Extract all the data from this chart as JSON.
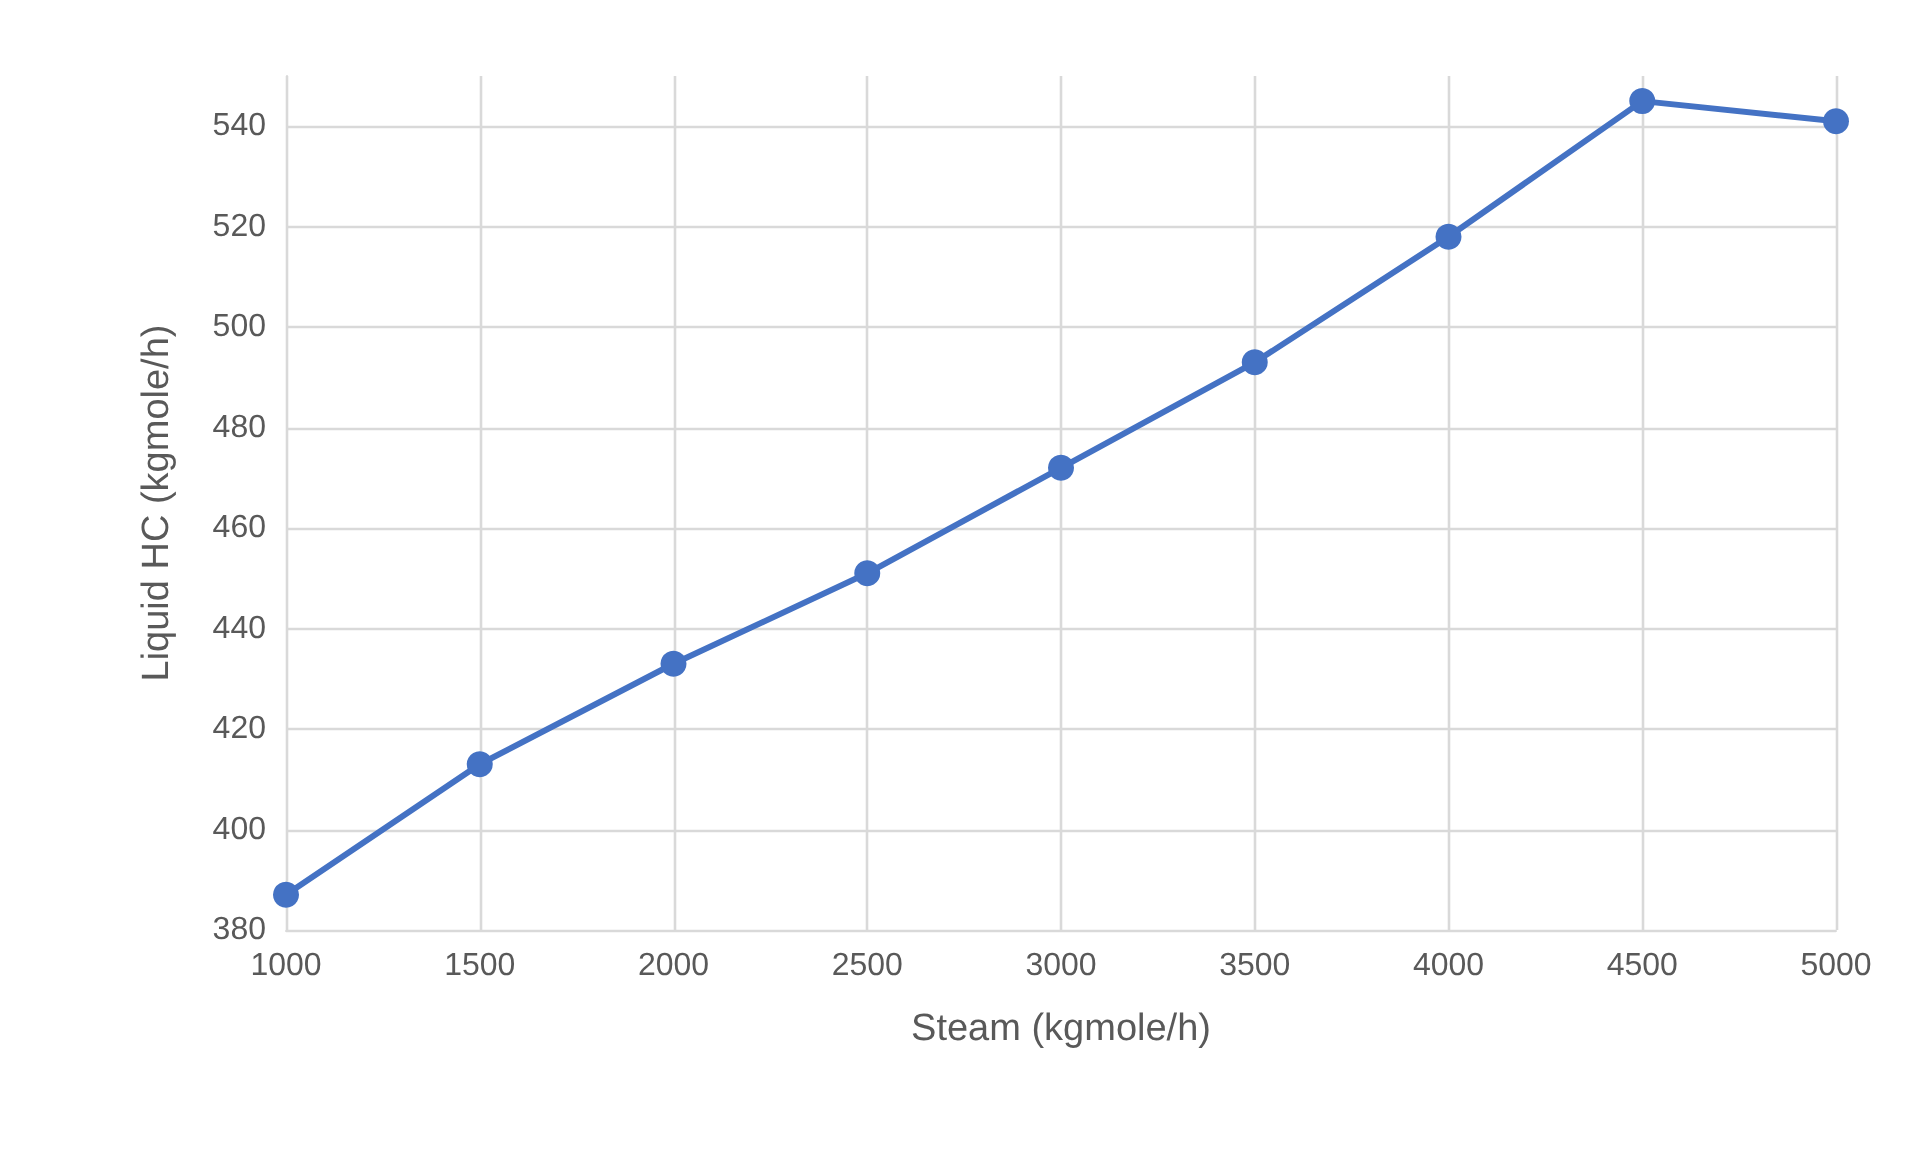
{
  "chart_data": {
    "type": "line",
    "xlabel": "Steam (kgmole/h)",
    "ylabel": "Liquid HC (kgmole/h)",
    "x": [
      1000,
      1500,
      2000,
      2500,
      3000,
      3500,
      4000,
      4500,
      5000
    ],
    "series": [
      {
        "color": "#4472c4",
        "values": [
          387,
          413,
          433,
          451,
          472,
          493,
          518,
          545,
          541
        ]
      }
    ],
    "xlim": [
      1000,
      5000
    ],
    "xticks": [
      1000,
      1500,
      2000,
      2500,
      3000,
      3500,
      4000,
      4500,
      5000
    ],
    "ylim": [
      380,
      550
    ],
    "yticks": [
      380,
      400,
      420,
      440,
      460,
      480,
      500,
      520,
      540
    ],
    "grid": true,
    "marker": "circle",
    "line_style": "solid"
  }
}
